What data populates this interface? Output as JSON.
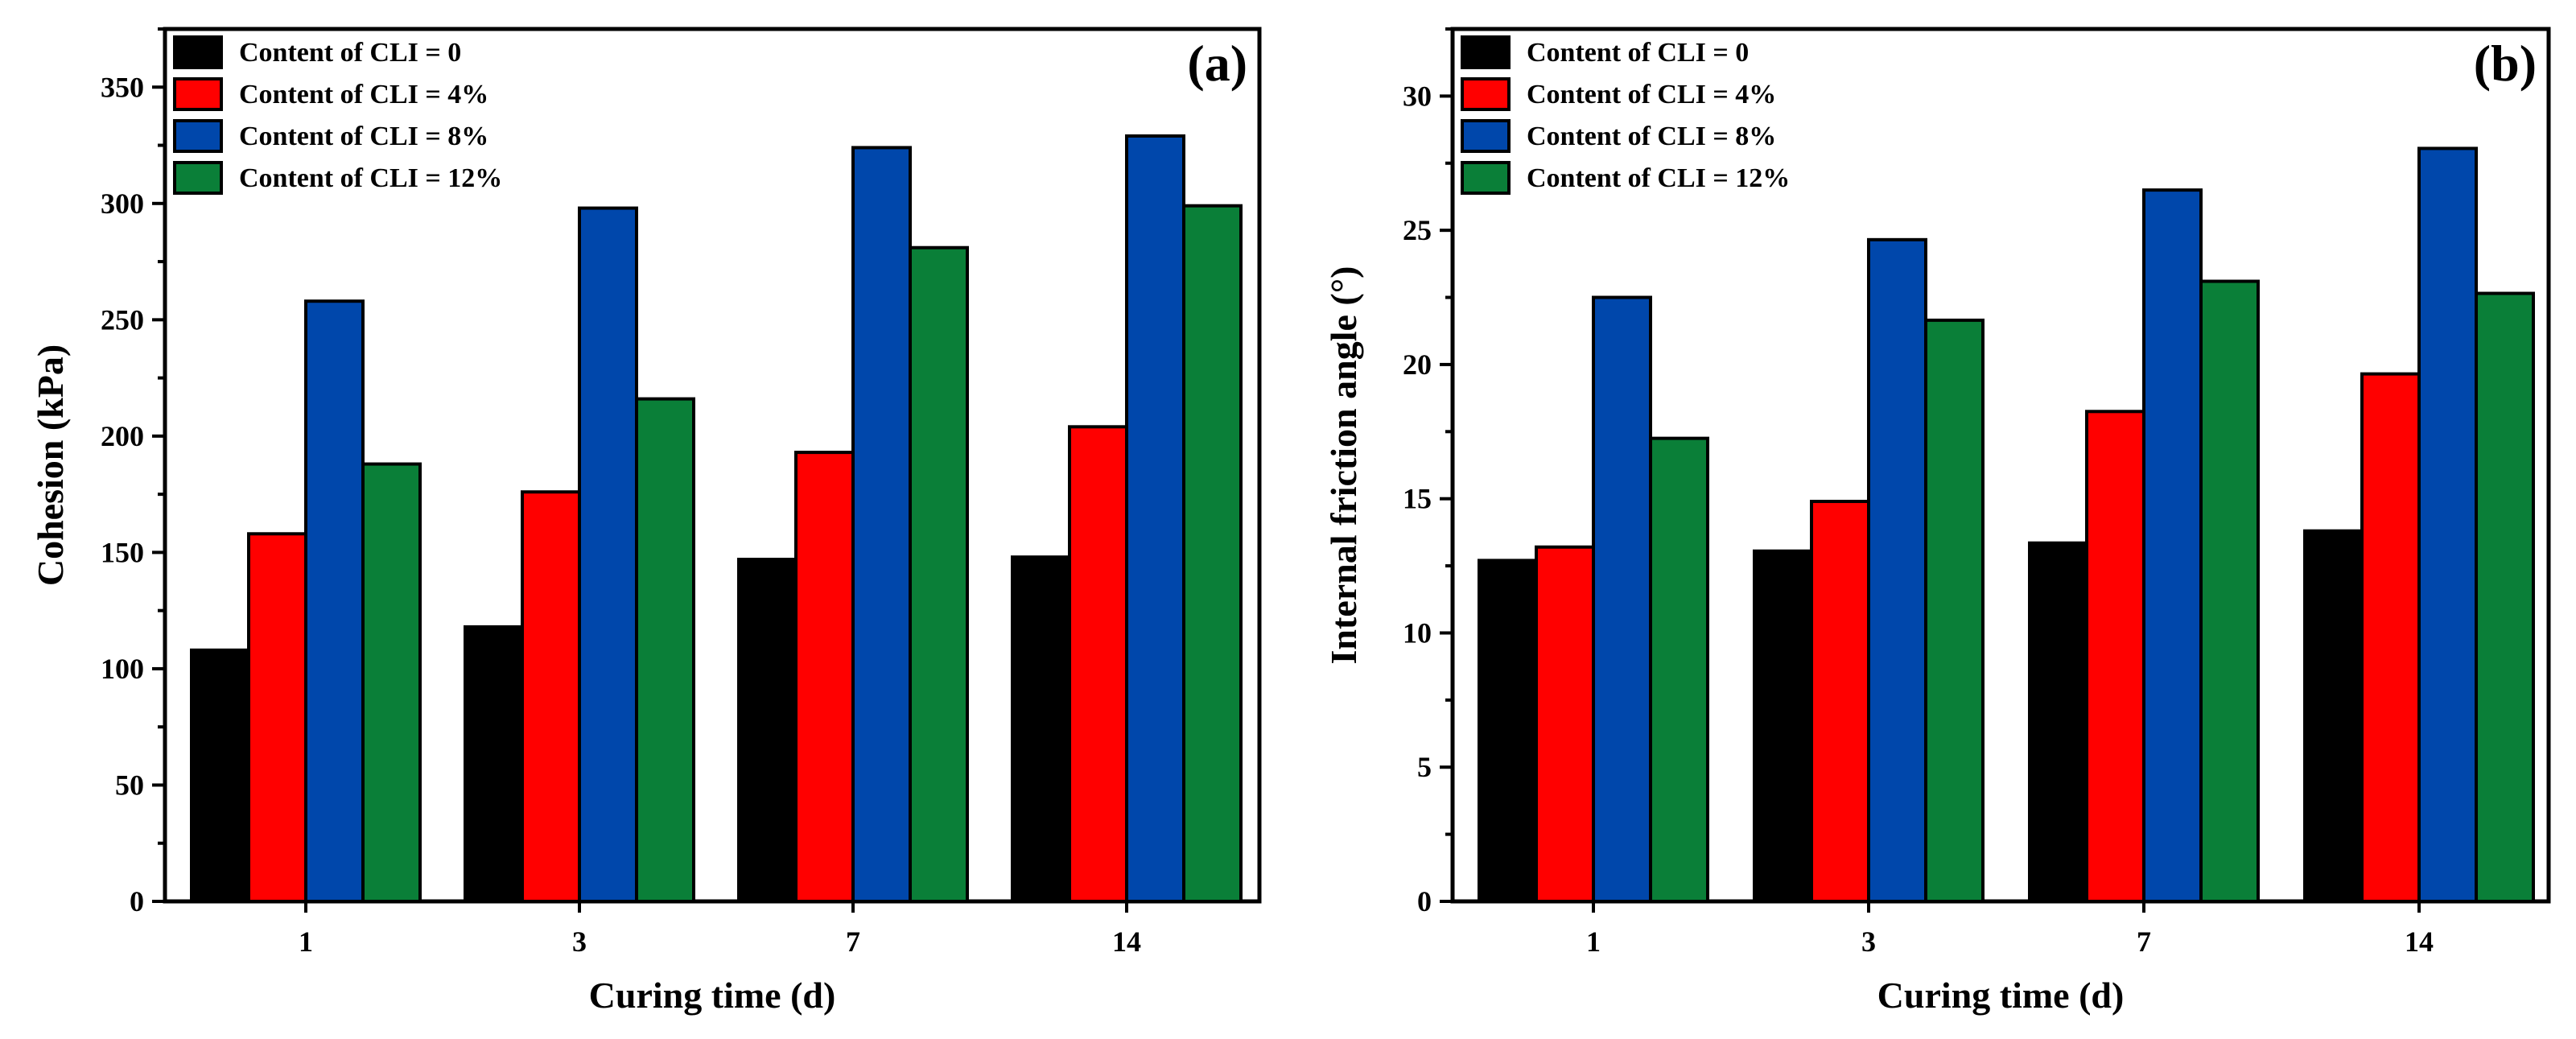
{
  "figure": {
    "panels": [
      "a",
      "b"
    ]
  },
  "chart_data": [
    {
      "type": "bar",
      "panel_label": "(a)",
      "title": "",
      "xlabel": "Curing time (d)",
      "ylabel": "Cohesion (kPa)",
      "categories": [
        "1",
        "3",
        "7",
        "14"
      ],
      "ylim": [
        0,
        375
      ],
      "yticks": [
        0,
        50,
        100,
        150,
        200,
        250,
        300,
        350
      ],
      "grid": false,
      "legend_position": "top-left",
      "series": [
        {
          "name": "Content of CLI = 0",
          "color": "#000000",
          "values": [
            108,
            118,
            147,
            148
          ]
        },
        {
          "name": "Content of CLI = 4%",
          "color": "#ff0000",
          "values": [
            158,
            176,
            193,
            204
          ]
        },
        {
          "name": "Content of CLI = 8%",
          "color": "#0047ab",
          "values": [
            258,
            298,
            324,
            329
          ]
        },
        {
          "name": "Content of CLI = 12%",
          "color": "#0a7f38",
          "values": [
            188,
            216,
            281,
            299
          ]
        }
      ]
    },
    {
      "type": "bar",
      "panel_label": "(b)",
      "title": "",
      "xlabel": "Curing time (d)",
      "ylabel": "Internal friction angle (°)",
      "categories": [
        "1",
        "3",
        "7",
        "14"
      ],
      "ylim": [
        0,
        32.5
      ],
      "yticks": [
        0,
        5,
        10,
        15,
        20,
        25,
        30
      ],
      "grid": false,
      "legend_position": "top-left",
      "series": [
        {
          "name": "Content of CLI = 0",
          "color": "#000000",
          "values": [
            12.7,
            13.05,
            13.35,
            13.8
          ]
        },
        {
          "name": "Content of CLI = 4%",
          "color": "#ff0000",
          "values": [
            13.2,
            14.9,
            18.25,
            19.65
          ]
        },
        {
          "name": "Content of CLI = 8%",
          "color": "#0047ab",
          "values": [
            22.5,
            24.65,
            26.5,
            28.05
          ]
        },
        {
          "name": "Content of CLI = 12%",
          "color": "#0a7f38",
          "values": [
            17.25,
            21.65,
            23.1,
            22.65
          ]
        }
      ]
    }
  ]
}
